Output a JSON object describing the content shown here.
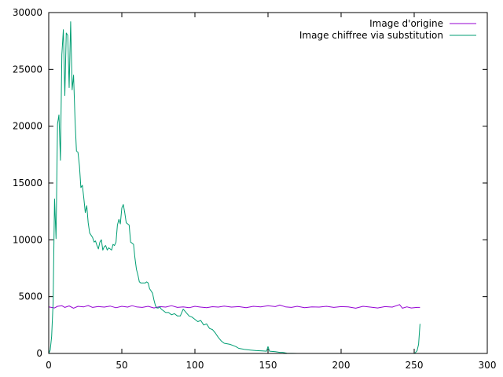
{
  "chart_data": {
    "type": "line",
    "title": "",
    "xlabel": "",
    "ylabel": "",
    "xlim": [
      0,
      300
    ],
    "ylim": [
      0,
      30000
    ],
    "x_ticks": [
      0,
      50,
      100,
      150,
      200,
      250,
      300
    ],
    "y_ticks": [
      0,
      5000,
      10000,
      15000,
      20000,
      25000,
      30000
    ],
    "legend_position": "top-right",
    "grid": false,
    "series": [
      {
        "name": "Image d'origine",
        "color": "#9400d3",
        "points": [
          [
            0,
            4100
          ],
          [
            4,
            4000
          ],
          [
            6,
            4150
          ],
          [
            9,
            4200
          ],
          [
            11,
            4050
          ],
          [
            14,
            4180
          ],
          [
            17,
            3980
          ],
          [
            20,
            4150
          ],
          [
            24,
            4100
          ],
          [
            27,
            4220
          ],
          [
            30,
            4050
          ],
          [
            34,
            4130
          ],
          [
            38,
            4080
          ],
          [
            42,
            4170
          ],
          [
            46,
            4020
          ],
          [
            50,
            4150
          ],
          [
            54,
            4080
          ],
          [
            57,
            4200
          ],
          [
            60,
            4100
          ],
          [
            64,
            4050
          ],
          [
            68,
            4150
          ],
          [
            72,
            4000
          ],
          [
            76,
            4120
          ],
          [
            80,
            4080
          ],
          [
            84,
            4200
          ],
          [
            88,
            4050
          ],
          [
            92,
            4100
          ],
          [
            96,
            4020
          ],
          [
            100,
            4150
          ],
          [
            104,
            4080
          ],
          [
            108,
            4030
          ],
          [
            112,
            4110
          ],
          [
            116,
            4080
          ],
          [
            120,
            4160
          ],
          [
            125,
            4080
          ],
          [
            130,
            4120
          ],
          [
            135,
            4020
          ],
          [
            140,
            4150
          ],
          [
            145,
            4100
          ],
          [
            150,
            4200
          ],
          [
            155,
            4120
          ],
          [
            158,
            4260
          ],
          [
            162,
            4100
          ],
          [
            166,
            4050
          ],
          [
            170,
            4150
          ],
          [
            175,
            4020
          ],
          [
            180,
            4100
          ],
          [
            185,
            4080
          ],
          [
            190,
            4150
          ],
          [
            195,
            4050
          ],
          [
            200,
            4120
          ],
          [
            205,
            4100
          ],
          [
            210,
            3980
          ],
          [
            215,
            4150
          ],
          [
            220,
            4080
          ],
          [
            225,
            4000
          ],
          [
            230,
            4120
          ],
          [
            235,
            4080
          ],
          [
            240,
            4300
          ],
          [
            242,
            3980
          ],
          [
            245,
            4100
          ],
          [
            248,
            4000
          ],
          [
            252,
            4050
          ],
          [
            254,
            4050
          ]
        ]
      },
      {
        "name": "Image chiffree via substitution",
        "color": "#009e73",
        "points": [
          [
            0,
            0
          ],
          [
            1,
            300
          ],
          [
            2,
            1500
          ],
          [
            3,
            4500
          ],
          [
            4,
            13600
          ],
          [
            5,
            10100
          ],
          [
            6,
            20200
          ],
          [
            7,
            21000
          ],
          [
            8,
            17000
          ],
          [
            9,
            26300
          ],
          [
            10,
            28500
          ],
          [
            11,
            22700
          ],
          [
            12,
            28200
          ],
          [
            13,
            28000
          ],
          [
            14,
            23400
          ],
          [
            15,
            29200
          ],
          [
            16,
            23200
          ],
          [
            17,
            24500
          ],
          [
            18,
            20500
          ],
          [
            19,
            17800
          ],
          [
            20,
            17700
          ],
          [
            21,
            16500
          ],
          [
            22,
            14600
          ],
          [
            23,
            14800
          ],
          [
            24,
            13700
          ],
          [
            25,
            12400
          ],
          [
            26,
            13000
          ],
          [
            27,
            11500
          ],
          [
            28,
            10600
          ],
          [
            30,
            10200
          ],
          [
            31,
            9800
          ],
          [
            32,
            9900
          ],
          [
            33,
            9500
          ],
          [
            34,
            9200
          ],
          [
            35,
            9800
          ],
          [
            36,
            10000
          ],
          [
            37,
            9100
          ],
          [
            38,
            9400
          ],
          [
            39,
            9500
          ],
          [
            40,
            9100
          ],
          [
            41,
            9300
          ],
          [
            42,
            9200
          ],
          [
            43,
            9100
          ],
          [
            44,
            9600
          ],
          [
            45,
            9500
          ],
          [
            46,
            9800
          ],
          [
            47,
            11300
          ],
          [
            48,
            11800
          ],
          [
            49,
            11400
          ],
          [
            50,
            12800
          ],
          [
            51,
            13100
          ],
          [
            52,
            12400
          ],
          [
            53,
            11500
          ],
          [
            55,
            11300
          ],
          [
            56,
            9800
          ],
          [
            58,
            9600
          ],
          [
            59,
            8400
          ],
          [
            60,
            7400
          ],
          [
            61,
            6900
          ],
          [
            62,
            6300
          ],
          [
            63,
            6200
          ],
          [
            64,
            6200
          ],
          [
            66,
            6200
          ],
          [
            67,
            6300
          ],
          [
            68,
            6200
          ],
          [
            69,
            5700
          ],
          [
            70,
            5500
          ],
          [
            71,
            5300
          ],
          [
            72,
            4700
          ],
          [
            73,
            4200
          ],
          [
            74,
            4000
          ],
          [
            75,
            4000
          ],
          [
            76,
            4100
          ],
          [
            77,
            3900
          ],
          [
            78,
            3800
          ],
          [
            80,
            3600
          ],
          [
            82,
            3600
          ],
          [
            84,
            3400
          ],
          [
            86,
            3500
          ],
          [
            88,
            3300
          ],
          [
            90,
            3300
          ],
          [
            92,
            3900
          ],
          [
            94,
            3600
          ],
          [
            96,
            3300
          ],
          [
            98,
            3200
          ],
          [
            100,
            3000
          ],
          [
            102,
            2800
          ],
          [
            104,
            2900
          ],
          [
            106,
            2500
          ],
          [
            108,
            2600
          ],
          [
            110,
            2200
          ],
          [
            112,
            2100
          ],
          [
            114,
            1800
          ],
          [
            116,
            1400
          ],
          [
            118,
            1100
          ],
          [
            120,
            900
          ],
          [
            124,
            800
          ],
          [
            128,
            600
          ],
          [
            130,
            450
          ],
          [
            134,
            350
          ],
          [
            138,
            300
          ],
          [
            142,
            250
          ],
          [
            146,
            220
          ],
          [
            149,
            200
          ],
          [
            150,
            600
          ],
          [
            151,
            200
          ],
          [
            155,
            150
          ],
          [
            158,
            100
          ],
          [
            160,
            100
          ],
          [
            163,
            20
          ],
          [
            170,
            0
          ],
          [
            250,
            0
          ],
          [
            251,
            100
          ],
          [
            252,
            250
          ],
          [
            253,
            800
          ],
          [
            254,
            2600
          ]
        ]
      }
    ]
  }
}
